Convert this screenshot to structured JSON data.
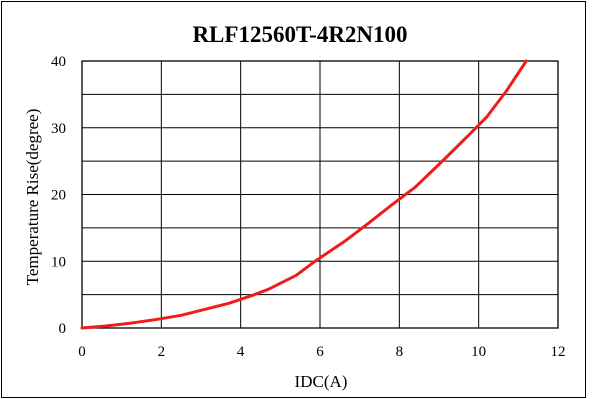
{
  "chart_data": {
    "type": "line",
    "title": "RLF12560T-4R2N100",
    "xlabel": "IDC(A)",
    "ylabel": "Temperature Rise(degree)",
    "xlim": [
      0,
      12
    ],
    "ylim": [
      0,
      40
    ],
    "x_ticks": [
      0,
      2,
      4,
      6,
      8,
      10,
      12
    ],
    "y_ticks": [
      0,
      10,
      20,
      30,
      40
    ],
    "x_tick_labels": [
      "0",
      "2",
      "4",
      "6",
      "8",
      "10",
      "12"
    ],
    "y_tick_labels": [
      "0",
      "10",
      "20",
      "30",
      "40"
    ],
    "grid": true,
    "legend": "none",
    "series": [
      {
        "color": "#ee1c1c",
        "x": [
          0,
          0.6,
          1.2,
          1.9,
          2.5,
          3.1,
          3.7,
          4.3,
          4.7,
          5.0,
          5.4,
          5.9,
          6.6,
          7.2,
          7.8,
          8.4,
          9.1,
          9.7,
          10.2,
          10.7,
          11.2
        ],
        "y": [
          0,
          0.3,
          0.7,
          1.3,
          1.9,
          2.8,
          3.7,
          4.9,
          5.8,
          6.7,
          7.9,
          10.1,
          12.9,
          15.6,
          18.4,
          21.1,
          25.1,
          28.6,
          31.6,
          35.5,
          40.0
        ]
      }
    ]
  }
}
